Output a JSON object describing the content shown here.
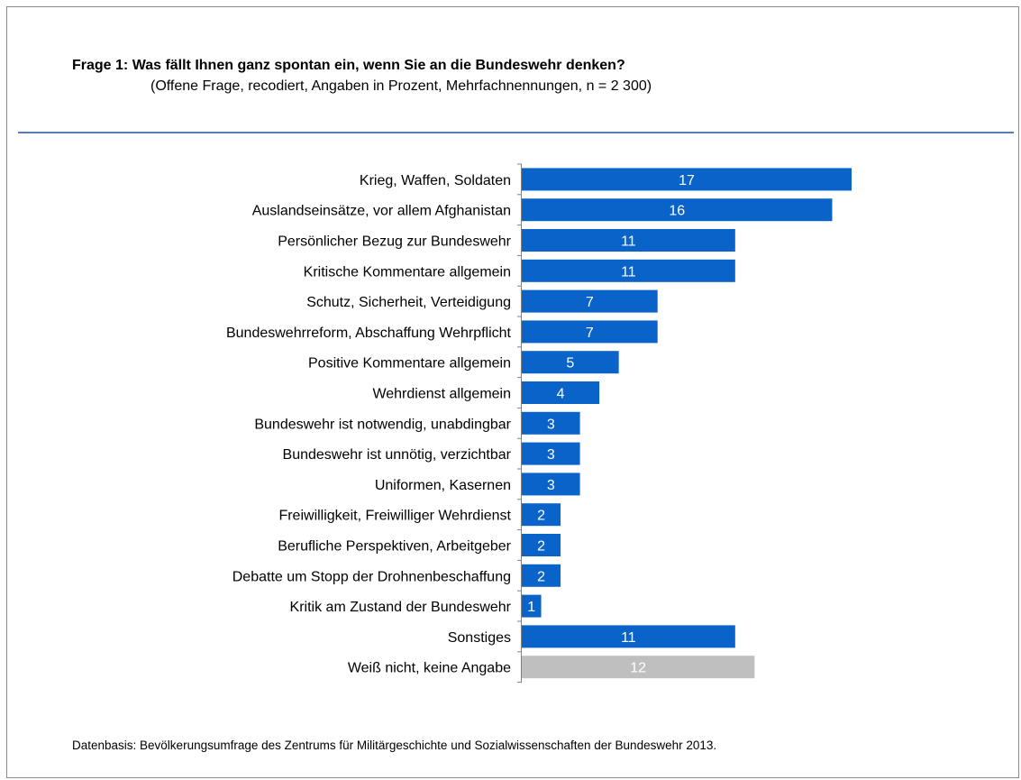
{
  "header": {
    "title": "Frage 1: Was fällt Ihnen ganz spontan ein, wenn Sie an die Bundeswehr denken?",
    "subtitle": "(Offene Frage, recodiert, Angaben in Prozent, Mehrfachnennungen, n = 2 300)"
  },
  "footer": {
    "source": "Datenbasis: Bevölkerungsumfrage des Zentrums für Militärgeschichte und Sozialwissenschaften der Bundeswehr 2013."
  },
  "colors": {
    "bar": "#0a63c9",
    "bar_neutral": "#bfbfbf",
    "rule": "#5a7ab0",
    "label_text": "#ffffff"
  },
  "chart_data": {
    "type": "bar",
    "orientation": "horizontal",
    "categories": [
      "Krieg, Waffen, Soldaten",
      "Auslandseinsätze, vor allem Afghanistan",
      "Persönlicher Bezug zur Bundeswehr",
      "Kritische Kommentare allgemein",
      "Schutz, Sicherheit, Verteidigung",
      "Bundeswehrreform, Abschaffung Wehrpflicht",
      "Positive Kommentare allgemein",
      "Wehrdienst allgemein",
      "Bundeswehr ist notwendig, unabdingbar",
      "Bundeswehr ist unnötig, verzichtbar",
      "Uniformen, Kasernen",
      "Freiwilligkeit, Freiwilliger Wehrdienst",
      "Berufliche Perspektiven, Arbeitgeber",
      "Debatte um Stopp der Drohnenbeschaffung",
      "Kritik am Zustand der Bundeswehr",
      "Sonstiges",
      "Weiß nicht, keine Angabe"
    ],
    "values": [
      17,
      16,
      11,
      11,
      7,
      7,
      5,
      4,
      3,
      3,
      3,
      2,
      2,
      2,
      1,
      11,
      12
    ],
    "bar_colors": [
      "#0a63c9",
      "#0a63c9",
      "#0a63c9",
      "#0a63c9",
      "#0a63c9",
      "#0a63c9",
      "#0a63c9",
      "#0a63c9",
      "#0a63c9",
      "#0a63c9",
      "#0a63c9",
      "#0a63c9",
      "#0a63c9",
      "#0a63c9",
      "#0a63c9",
      "#0a63c9",
      "#bfbfbf"
    ],
    "data_labels": true,
    "xlabel": "",
    "ylabel": "",
    "xlim": [
      0,
      17
    ],
    "grid": false,
    "legend": "none"
  }
}
